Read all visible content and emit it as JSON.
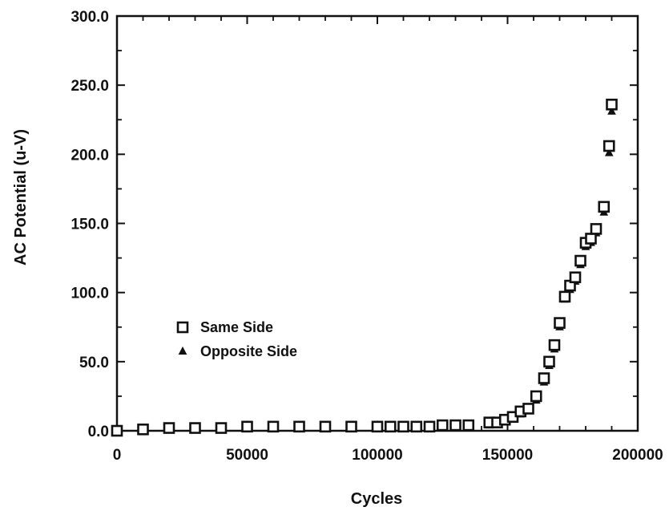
{
  "chart_data": {
    "type": "scatter",
    "title": "",
    "xlabel": "Cycles",
    "ylabel": "AC Potential (u-V)",
    "xlim": [
      0,
      200000
    ],
    "ylim": [
      0,
      300
    ],
    "xticks": [
      0,
      50000,
      100000,
      150000,
      200000
    ],
    "xtick_labels": [
      "0",
      "50000",
      "100000",
      "150000",
      "200000"
    ],
    "yticks": [
      0,
      50,
      100,
      150,
      200,
      250,
      300
    ],
    "ytick_labels": [
      "0.0",
      "50.0",
      "100.0",
      "150.0",
      "200.0",
      "250.0",
      "300.0"
    ],
    "grid": false,
    "legend": "center-left",
    "series": [
      {
        "name": "Same Side",
        "marker": "square",
        "color": "#111111",
        "points": [
          [
            0,
            0
          ],
          [
            10000,
            1
          ],
          [
            20000,
            2
          ],
          [
            30000,
            2
          ],
          [
            40000,
            2
          ],
          [
            50000,
            3
          ],
          [
            60000,
            3
          ],
          [
            70000,
            3
          ],
          [
            80000,
            3
          ],
          [
            90000,
            3
          ],
          [
            100000,
            3
          ],
          [
            105000,
            3
          ],
          [
            110000,
            3
          ],
          [
            115000,
            3
          ],
          [
            120000,
            3
          ],
          [
            125000,
            4
          ],
          [
            130000,
            4
          ],
          [
            135000,
            4
          ],
          [
            143000,
            6
          ],
          [
            146000,
            6
          ],
          [
            149000,
            8
          ],
          [
            152000,
            10
          ],
          [
            155000,
            14
          ],
          [
            158000,
            16
          ],
          [
            161000,
            25
          ],
          [
            164000,
            38
          ],
          [
            166000,
            50
          ],
          [
            168000,
            62
          ],
          [
            170000,
            78
          ],
          [
            172000,
            97
          ],
          [
            174000,
            105
          ],
          [
            176000,
            111
          ],
          [
            178000,
            123
          ],
          [
            180000,
            136
          ],
          [
            182000,
            139
          ],
          [
            184000,
            146
          ],
          [
            187000,
            162
          ],
          [
            189000,
            206
          ],
          [
            190000,
            236
          ]
        ]
      },
      {
        "name": "Opposite Side",
        "marker": "triangle",
        "color": "#111111",
        "points": [
          [
            0,
            0
          ],
          [
            10000,
            1
          ],
          [
            20000,
            1
          ],
          [
            30000,
            1
          ],
          [
            40000,
            1
          ],
          [
            50000,
            4
          ],
          [
            60000,
            2
          ],
          [
            70000,
            2
          ],
          [
            80000,
            2
          ],
          [
            90000,
            2
          ],
          [
            100000,
            4
          ],
          [
            105000,
            2
          ],
          [
            110000,
            2
          ],
          [
            115000,
            2
          ],
          [
            120000,
            2
          ],
          [
            125000,
            3
          ],
          [
            130000,
            3
          ],
          [
            135000,
            3
          ],
          [
            143000,
            4
          ],
          [
            146000,
            5
          ],
          [
            149000,
            7
          ],
          [
            152000,
            9
          ],
          [
            155000,
            12
          ],
          [
            158000,
            15
          ],
          [
            161000,
            22
          ],
          [
            164000,
            35
          ],
          [
            166000,
            47
          ],
          [
            168000,
            59
          ],
          [
            170000,
            75
          ],
          [
            172000,
            95
          ],
          [
            174000,
            102
          ],
          [
            176000,
            108
          ],
          [
            178000,
            120
          ],
          [
            180000,
            133
          ],
          [
            182000,
            136
          ],
          [
            184000,
            143
          ],
          [
            187000,
            158
          ],
          [
            189000,
            201
          ],
          [
            190000,
            231
          ]
        ]
      }
    ]
  }
}
